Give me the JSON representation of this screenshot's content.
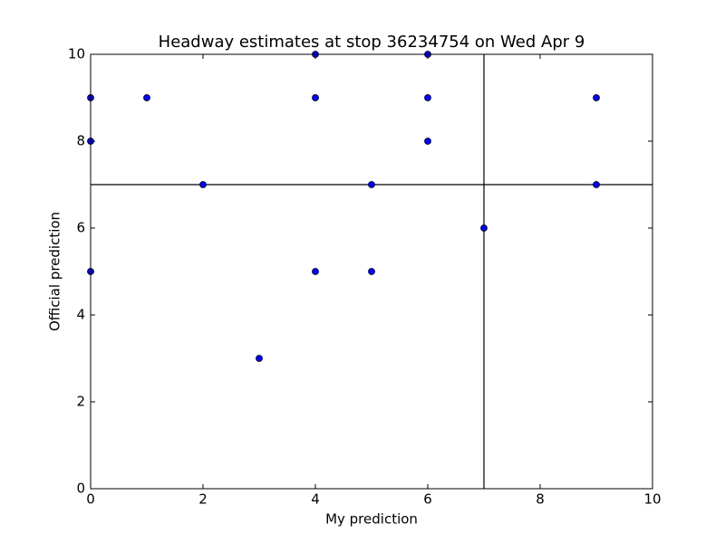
{
  "chart_data": {
    "type": "scatter",
    "title": "Headway estimates at stop 36234754 on Wed Apr 9",
    "x_label": "My prediction",
    "y_label": "Official prediction",
    "x": [
      0,
      0,
      0,
      1,
      2,
      3,
      4,
      4,
      4,
      5,
      5,
      6,
      6,
      6,
      7,
      9,
      9
    ],
    "values": [
      9,
      8,
      5,
      9,
      7,
      3,
      10,
      9,
      5,
      7,
      5,
      10,
      9,
      8,
      6,
      9,
      7
    ],
    "color": "#0000ff",
    "xlim": [
      0,
      10
    ],
    "ylim": [
      0,
      10
    ],
    "xticks": [
      0,
      2,
      4,
      6,
      8,
      10
    ],
    "yticks": [
      0,
      2,
      4,
      6,
      8,
      10
    ],
    "vlines": [
      7
    ],
    "hlines": [
      7
    ]
  }
}
